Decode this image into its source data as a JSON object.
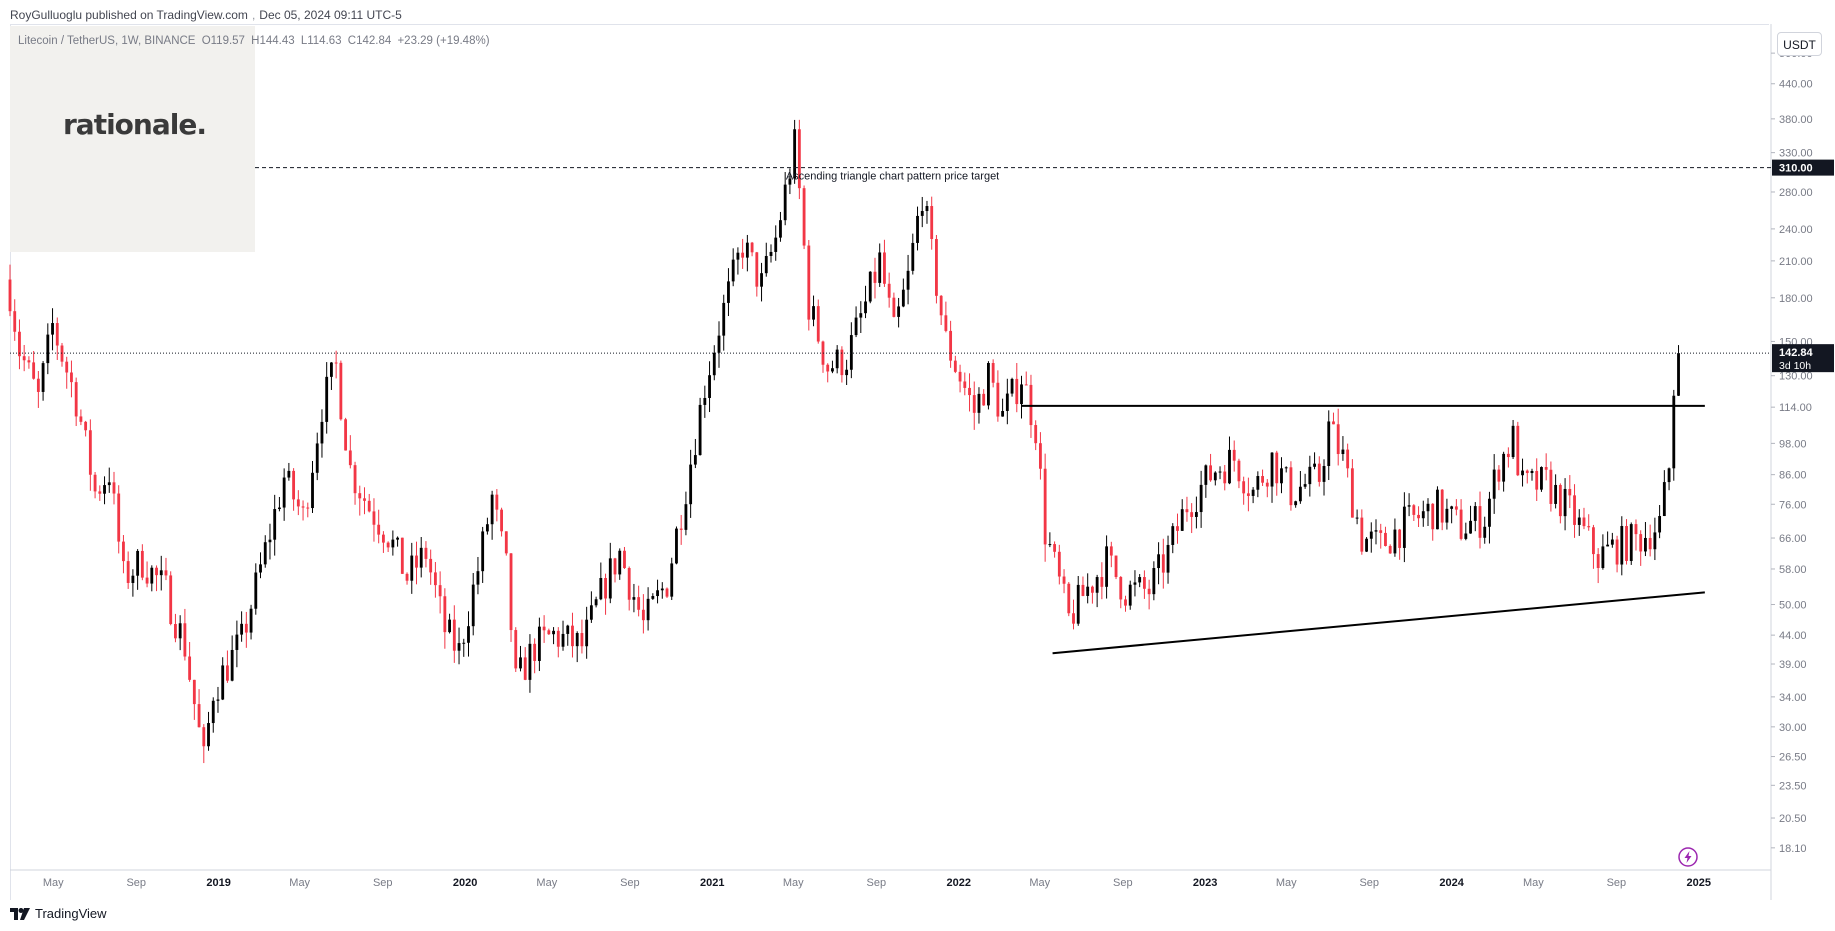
{
  "header": {
    "publisher": "RoyGulluoglu published on TradingView.com",
    "date": "Dec 05, 2024 09:11 UTC-5"
  },
  "symbol": {
    "name": "Litecoin / TetherUS, 1W, BINANCE",
    "open": "O119.57",
    "high": "H144.43",
    "low": "L114.63",
    "close": "C142.84",
    "change": "+23.29 (+19.48%)"
  },
  "logo": {
    "text": "rationale."
  },
  "currency": "USDT",
  "footer": {
    "brand": "TradingView",
    "brand_icon": "tradingview-logo-icon"
  },
  "colors": {
    "up": "#000000",
    "down": "#f23645",
    "line": "#000000",
    "grid_label": "#787b86"
  },
  "chart_data": {
    "type": "candlestick",
    "scale": "log",
    "ylim": [
      16.5,
      560
    ],
    "x_range": [
      "2018-02-26",
      "2025-04-15"
    ],
    "y_ticks": [
      "500.00",
      "440.00",
      "380.00",
      "330.00",
      "280.00",
      "240.00",
      "210.00",
      "180.00",
      "150.00",
      "130.00",
      "114.00",
      "98.00",
      "86.00",
      "76.00",
      "66.00",
      "58.00",
      "50.00",
      "44.00",
      "39.00",
      "34.00",
      "30.00",
      "26.50",
      "23.50",
      "20.50",
      "18.10"
    ],
    "x_ticks": [
      {
        "label": "May",
        "date": "2018-05-01",
        "major": false
      },
      {
        "label": "Sep",
        "date": "2018-09-01",
        "major": false
      },
      {
        "label": "2019",
        "date": "2019-01-01",
        "major": true
      },
      {
        "label": "May",
        "date": "2019-05-01",
        "major": false
      },
      {
        "label": "Sep",
        "date": "2019-09-01",
        "major": false
      },
      {
        "label": "2020",
        "date": "2020-01-01",
        "major": true
      },
      {
        "label": "May",
        "date": "2020-05-01",
        "major": false
      },
      {
        "label": "Sep",
        "date": "2020-09-01",
        "major": false
      },
      {
        "label": "2021",
        "date": "2021-01-01",
        "major": true
      },
      {
        "label": "May",
        "date": "2021-05-01",
        "major": false
      },
      {
        "label": "Sep",
        "date": "2021-09-01",
        "major": false
      },
      {
        "label": "2022",
        "date": "2022-01-01",
        "major": true
      },
      {
        "label": "May",
        "date": "2022-05-01",
        "major": false
      },
      {
        "label": "Sep",
        "date": "2022-09-01",
        "major": false
      },
      {
        "label": "2023",
        "date": "2023-01-01",
        "major": true
      },
      {
        "label": "May",
        "date": "2023-05-01",
        "major": false
      },
      {
        "label": "Sep",
        "date": "2023-09-01",
        "major": false
      },
      {
        "label": "2024",
        "date": "2024-01-01",
        "major": true
      },
      {
        "label": "May",
        "date": "2024-05-01",
        "major": false
      },
      {
        "label": "Sep",
        "date": "2024-09-01",
        "major": false
      },
      {
        "label": "2025",
        "date": "2025-01-01",
        "major": true
      }
    ],
    "price_path": [
      [
        "2018-02-26",
        185
      ],
      [
        "2018-03-12",
        145
      ],
      [
        "2018-04-09",
        118
      ],
      [
        "2018-04-30",
        160
      ],
      [
        "2018-06-04",
        118
      ],
      [
        "2018-07-02",
        80
      ],
      [
        "2018-07-23",
        87
      ],
      [
        "2018-08-13",
        56
      ],
      [
        "2018-09-10",
        60
      ],
      [
        "2018-10-15",
        53
      ],
      [
        "2018-11-12",
        42
      ],
      [
        "2018-12-10",
        26
      ],
      [
        "2018-12-24",
        35
      ],
      [
        "2019-02-04",
        43
      ],
      [
        "2019-03-04",
        58
      ],
      [
        "2019-04-08",
        85
      ],
      [
        "2019-05-06",
        72
      ],
      [
        "2019-06-03",
        115
      ],
      [
        "2019-06-24",
        135
      ],
      [
        "2019-07-15",
        88
      ],
      [
        "2019-08-12",
        75
      ],
      [
        "2019-09-09",
        67
      ],
      [
        "2019-10-07",
        56
      ],
      [
        "2019-11-04",
        62
      ],
      [
        "2019-12-02",
        45
      ],
      [
        "2019-12-23",
        41
      ],
      [
        "2020-01-20",
        58
      ],
      [
        "2020-02-10",
        78
      ],
      [
        "2020-03-02",
        58
      ],
      [
        "2020-03-16",
        36
      ],
      [
        "2020-04-13",
        42
      ],
      [
        "2020-05-11",
        44
      ],
      [
        "2020-06-22",
        42
      ],
      [
        "2020-07-27",
        55
      ],
      [
        "2020-08-17",
        62
      ],
      [
        "2020-09-21",
        46
      ],
      [
        "2020-10-26",
        55
      ],
      [
        "2020-11-23",
        82
      ],
      [
        "2020-12-21",
        125
      ],
      [
        "2021-01-11",
        160
      ],
      [
        "2021-02-15",
        225
      ],
      [
        "2021-03-15",
        190
      ],
      [
        "2021-04-05",
        230
      ],
      [
        "2021-05-03",
        340
      ],
      [
        "2021-05-10",
        280
      ],
      [
        "2021-05-24",
        175
      ],
      [
        "2021-06-21",
        135
      ],
      [
        "2021-07-19",
        140
      ],
      [
        "2021-08-16",
        175
      ],
      [
        "2021-09-06",
        210
      ],
      [
        "2021-09-27",
        155
      ],
      [
        "2021-10-18",
        195
      ],
      [
        "2021-11-08",
        280
      ],
      [
        "2021-11-22",
        215
      ],
      [
        "2021-12-13",
        150
      ],
      [
        "2022-01-24",
        112
      ],
      [
        "2022-02-14",
        130
      ],
      [
        "2022-03-07",
        110
      ],
      [
        "2022-04-04",
        130
      ],
      [
        "2022-04-25",
        105
      ],
      [
        "2022-05-09",
        68
      ],
      [
        "2022-06-13",
        47
      ],
      [
        "2022-07-04",
        52
      ],
      [
        "2022-08-08",
        60
      ],
      [
        "2022-09-05",
        53
      ],
      [
        "2022-10-10",
        53
      ],
      [
        "2022-11-07",
        62
      ],
      [
        "2022-12-05",
        76
      ],
      [
        "2023-01-16",
        88
      ],
      [
        "2023-02-13",
        92
      ],
      [
        "2023-03-13",
        80
      ],
      [
        "2023-04-10",
        92
      ],
      [
        "2023-05-08",
        80
      ],
      [
        "2023-06-19",
        85
      ],
      [
        "2023-07-03",
        105
      ],
      [
        "2023-07-24",
        92
      ],
      [
        "2023-08-21",
        66
      ],
      [
        "2023-09-18",
        64
      ],
      [
        "2023-10-23",
        70
      ],
      [
        "2023-11-13",
        72
      ],
      [
        "2023-12-11",
        75
      ],
      [
        "2024-01-15",
        69
      ],
      [
        "2024-02-19",
        72
      ],
      [
        "2024-03-11",
        90
      ],
      [
        "2024-04-01",
        100
      ],
      [
        "2024-04-15",
        82
      ],
      [
        "2024-05-20",
        83
      ],
      [
        "2024-06-24",
        74
      ],
      [
        "2024-08-05",
        61
      ],
      [
        "2024-09-02",
        64
      ],
      [
        "2024-10-07",
        66
      ],
      [
        "2024-11-04",
        70
      ],
      [
        "2024-11-18",
        88
      ],
      [
        "2024-11-25",
        119.57
      ],
      [
        "2024-12-02",
        142.84
      ]
    ],
    "lines": [
      {
        "kind": "horizontal",
        "label": "resistance",
        "y": 114.6,
        "x_from": "2022-04-04",
        "x_to": "2025-01-10"
      },
      {
        "kind": "trend",
        "label": "support",
        "x1": "2022-05-20",
        "y1": 40.8,
        "x2": "2025-01-10",
        "y2": 52.6
      },
      {
        "kind": "target",
        "y": 310,
        "label": "310.00",
        "dashed": true
      },
      {
        "kind": "last-price",
        "y": 142.84,
        "dotted": true
      }
    ],
    "annotation": {
      "text": "Ascending triangle chart pattern price target",
      "date": "2021-04-20",
      "y": 310
    },
    "last_price": {
      "value": "142.84",
      "countdown": "3d 10h"
    }
  }
}
